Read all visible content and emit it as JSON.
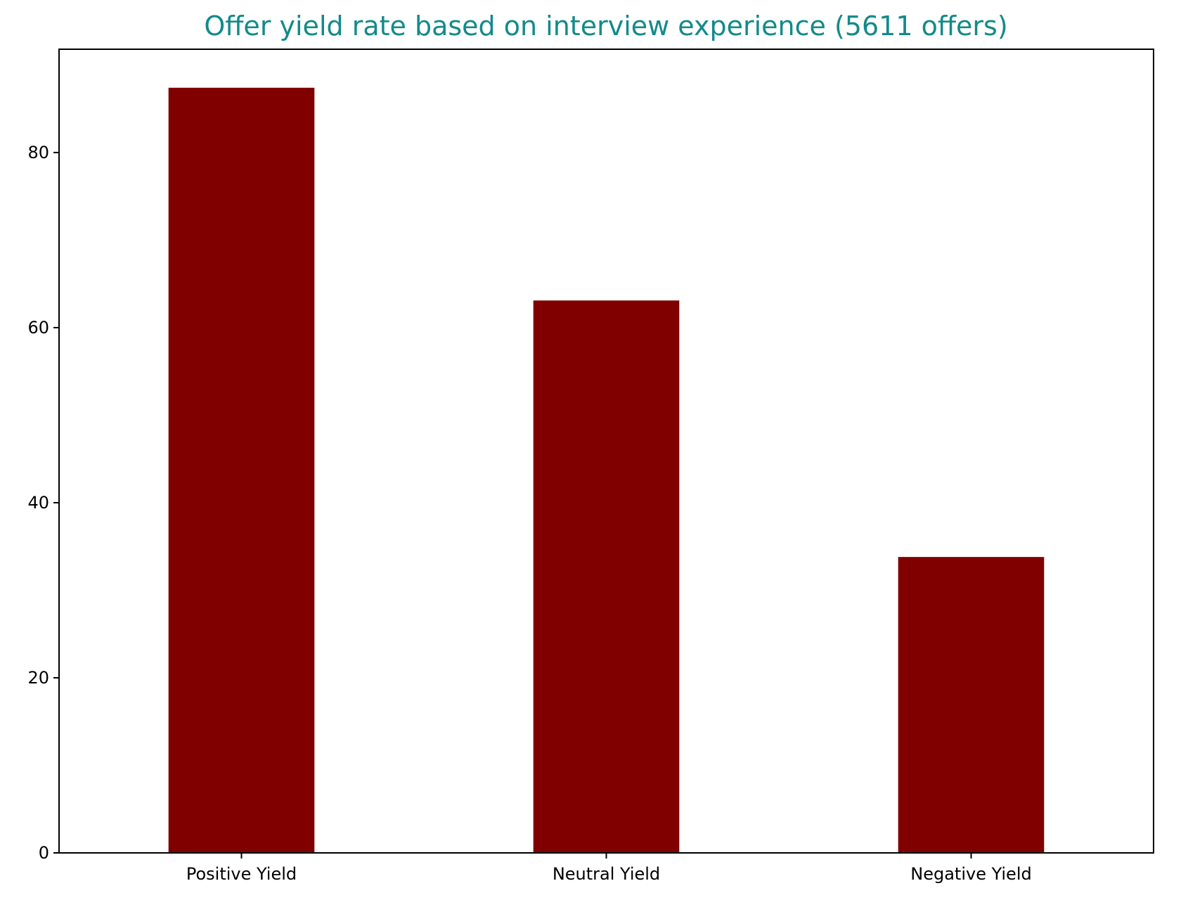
{
  "chart_data": {
    "type": "bar",
    "title": "Offer yield rate based on interview experience (5611 offers)",
    "xlabel": "",
    "ylabel": "",
    "categories": [
      "Positive Yield",
      "Neutral Yield",
      "Negative Yield"
    ],
    "values": [
      87.4,
      63.1,
      33.8
    ],
    "ylim": [
      0,
      91.8
    ],
    "yticks": [
      0,
      20,
      40,
      60,
      80
    ],
    "grid": false,
    "legend": "none",
    "colors": {
      "bar": "#800000",
      "title": "#138a8a",
      "axis": "#000000",
      "background": "#ffffff"
    }
  }
}
